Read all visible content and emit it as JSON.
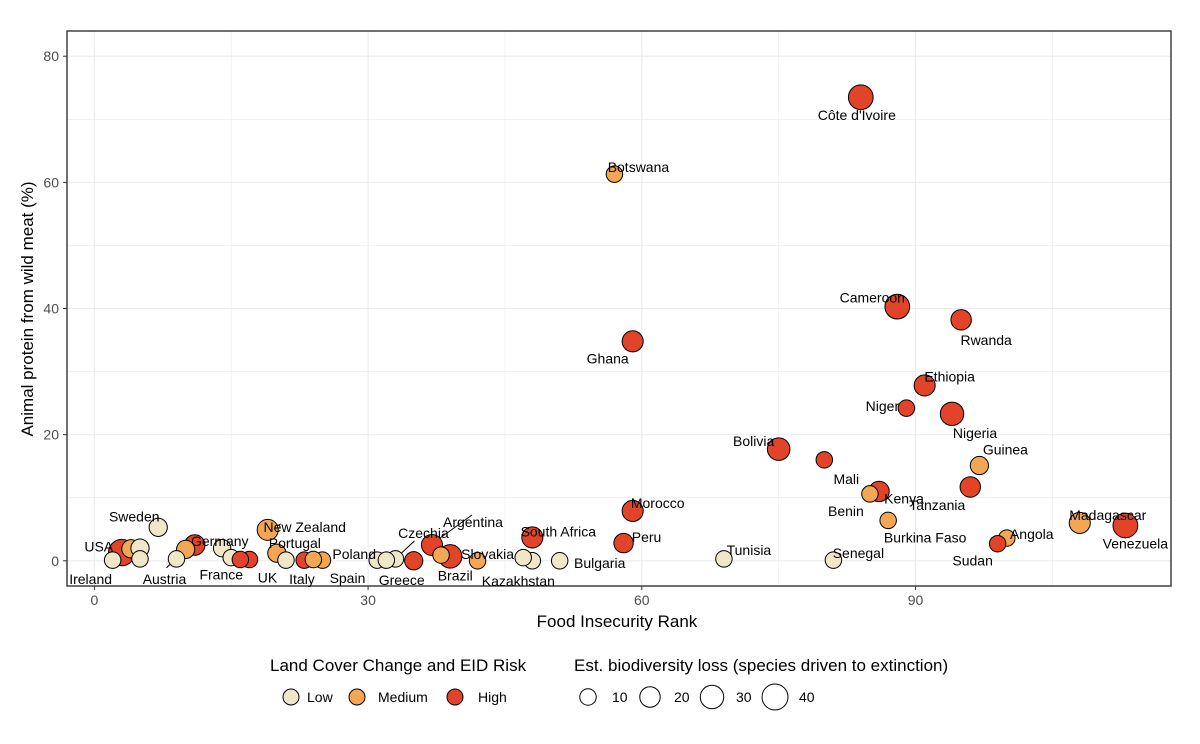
{
  "chart_data": {
    "type": "scatter",
    "xlabel": "Food Insecurity Rank",
    "ylabel": "Animal protein from wild meat (%)",
    "xlim": [
      -3,
      118
    ],
    "ylim": [
      -4,
      84
    ],
    "x_ticks": [
      0,
      30,
      60,
      90
    ],
    "y_ticks": [
      0,
      20,
      40,
      60,
      80
    ],
    "grid": true,
    "legend_position": "bottom",
    "risk_legend": {
      "title": "Land Cover Change and EID Risk",
      "items": [
        {
          "label": "Low",
          "color": "#f0e6c8"
        },
        {
          "label": "Medium",
          "color": "#f3a754"
        },
        {
          "label": "High",
          "color": "#e2442a"
        }
      ]
    },
    "size_legend": {
      "title": "Est. biodiversity loss (species driven to extinction)",
      "items": [
        {
          "label": "10",
          "value": 10
        },
        {
          "label": "20",
          "value": 20
        },
        {
          "label": "30",
          "value": 30
        },
        {
          "label": "40",
          "value": 40
        }
      ]
    },
    "points": [
      {
        "label": "Côte d'Ivoire",
        "x": 84,
        "y": 73.5,
        "risk": "High",
        "size": 35
      },
      {
        "label": "Botswana",
        "x": 57,
        "y": 61.3,
        "risk": "Medium",
        "size": 10
      },
      {
        "label": "Cameroon",
        "x": 88,
        "y": 40.3,
        "risk": "High",
        "size": 35
      },
      {
        "label": "Rwanda",
        "x": 95,
        "y": 38.2,
        "risk": "High",
        "size": 20
      },
      {
        "label": "Ghana",
        "x": 59,
        "y": 34.8,
        "risk": "High",
        "size": 22
      },
      {
        "label": "Ethiopia",
        "x": 91,
        "y": 27.8,
        "risk": "High",
        "size": 22
      },
      {
        "label": "Niger",
        "x": 89,
        "y": 24.2,
        "risk": "High",
        "size": 10
      },
      {
        "label": "Nigeria",
        "x": 94,
        "y": 23.3,
        "risk": "High",
        "size": 30
      },
      {
        "label": "Bolivia",
        "x": 75,
        "y": 17.7,
        "risk": "High",
        "size": 27
      },
      {
        "label": "Mali",
        "x": 80,
        "y": 16.0,
        "risk": "High",
        "size": 10
      },
      {
        "label": "Guinea",
        "x": 97,
        "y": 15.1,
        "risk": "Medium",
        "size": 14
      },
      {
        "label": "Tanzania",
        "x": 96,
        "y": 11.7,
        "risk": "High",
        "size": 20
      },
      {
        "label": "Kenya",
        "x": 86,
        "y": 11.0,
        "risk": "High",
        "size": 20
      },
      {
        "label": "Benin",
        "x": 85,
        "y": 10.6,
        "risk": "Medium",
        "size": 10
      },
      {
        "label": "Morocco",
        "x": 59,
        "y": 7.9,
        "risk": "High",
        "size": 22
      },
      {
        "label": "Burkina Faso",
        "x": 87,
        "y": 6.4,
        "risk": "Medium",
        "size": 10
      },
      {
        "label": "Madagascar",
        "x": 108,
        "y": 6.0,
        "risk": "Medium",
        "size": 22
      },
      {
        "label": "Venezuela",
        "x": 113,
        "y": 5.6,
        "risk": "High",
        "size": 35
      },
      {
        "label": "South Africa",
        "x": 48,
        "y": 3.7,
        "risk": "High",
        "size": 22
      },
      {
        "label": "Angola",
        "x": 100,
        "y": 3.6,
        "risk": "Medium",
        "size": 10
      },
      {
        "label": "Peru",
        "x": 58,
        "y": 2.8,
        "risk": "High",
        "size": 17
      },
      {
        "label": "Sudan",
        "x": 99,
        "y": 2.7,
        "risk": "High",
        "size": 10
      },
      {
        "label": "Sweden",
        "x": 7,
        "y": 5.3,
        "risk": "Low",
        "size": 14
      },
      {
        "label": "New Zealand",
        "x": 19,
        "y": 4.9,
        "risk": "Medium",
        "size": 22
      },
      {
        "label": "Germany",
        "x": 11,
        "y": 2.5,
        "risk": "High",
        "size": 20
      },
      {
        "label": "USA",
        "x": 3,
        "y": 1.3,
        "risk": "High",
        "size": 42
      },
      {
        "label": "Ireland",
        "x": 2,
        "y": 0.1,
        "risk": "Low",
        "size": 10
      },
      {
        "label": "Austria",
        "x": 9,
        "y": 0.3,
        "risk": "Low",
        "size": 10
      },
      {
        "label": "France",
        "x": 15,
        "y": 0.5,
        "risk": "Low",
        "size": 10
      },
      {
        "label": "UK",
        "x": 17,
        "y": 0.2,
        "risk": "High",
        "size": 10
      },
      {
        "label": "Portugal",
        "x": 20,
        "y": 1.2,
        "risk": "Medium",
        "size": 14
      },
      {
        "label": "Italy",
        "x": 21,
        "y": 0.1,
        "risk": "Low",
        "size": 10
      },
      {
        "label": "Spain",
        "x": 25,
        "y": 0.1,
        "risk": "Medium",
        "size": 10
      },
      {
        "label": "Poland",
        "x": 31,
        "y": 0.1,
        "risk": "Low",
        "size": 10
      },
      {
        "label": "Czechia",
        "x": 33,
        "y": 0.3,
        "risk": "Low",
        "size": 10
      },
      {
        "label": "Greece",
        "x": 35,
        "y": 0.0,
        "risk": "High",
        "size": 14
      },
      {
        "label": "Argentina",
        "x": 37,
        "y": 2.5,
        "risk": "High",
        "size": 22
      },
      {
        "label": "Brazil",
        "x": 39,
        "y": 0.7,
        "risk": "High",
        "size": 30
      },
      {
        "label": "Slovakia",
        "x": 42,
        "y": 0.0,
        "risk": "Medium",
        "size": 10
      },
      {
        "label": "Kazakhstan",
        "x": 48,
        "y": 0.0,
        "risk": "Low",
        "size": 10
      },
      {
        "label": "Bulgaria",
        "x": 51,
        "y": 0.0,
        "risk": "Low",
        "size": 10
      },
      {
        "label": "Tunisia",
        "x": 69,
        "y": 0.3,
        "risk": "Low",
        "size": 10
      },
      {
        "label": "Senegal",
        "x": 81,
        "y": 0.1,
        "risk": "Low",
        "size": 10
      },
      {
        "label": "",
        "x": 4,
        "y": 1.9,
        "risk": "Medium",
        "size": 14
      },
      {
        "label": "",
        "x": 5,
        "y": 2.0,
        "risk": "Low",
        "size": 14
      },
      {
        "label": "",
        "x": 5,
        "y": 0.3,
        "risk": "Low",
        "size": 10
      },
      {
        "label": "",
        "x": 10,
        "y": 1.8,
        "risk": "Medium",
        "size": 14
      },
      {
        "label": "",
        "x": 14,
        "y": 2.0,
        "risk": "Low",
        "size": 12
      },
      {
        "label": "",
        "x": 16,
        "y": 0.2,
        "risk": "High",
        "size": 10
      },
      {
        "label": "",
        "x": 23,
        "y": 0.1,
        "risk": "High",
        "size": 10
      },
      {
        "label": "",
        "x": 24,
        "y": 0.2,
        "risk": "Medium",
        "size": 10
      },
      {
        "label": "",
        "x": 32,
        "y": 0.1,
        "risk": "Low",
        "size": 10
      },
      {
        "label": "",
        "x": 38,
        "y": 0.9,
        "risk": "Medium",
        "size": 10
      },
      {
        "label": "",
        "x": 47,
        "y": 0.5,
        "risk": "Low",
        "size": 10
      }
    ]
  }
}
